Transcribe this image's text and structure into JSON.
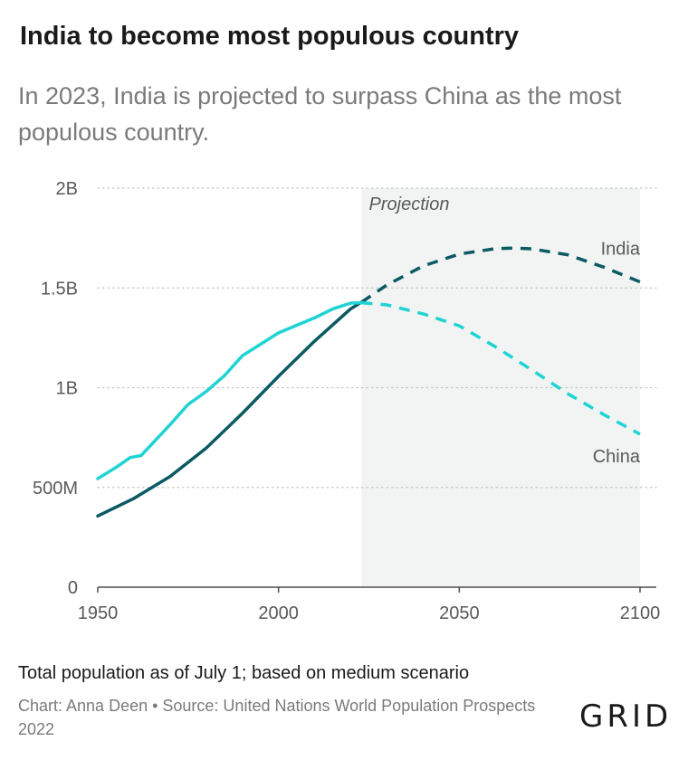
{
  "title": "India to become most populous country",
  "subtitle": "In 2023, India is projected to surpass China as the most populous country.",
  "note": "Total population as of July 1; based on medium scenario",
  "credit": "Chart: Anna Deen • Source: United Nations World Population Prospects 2022",
  "logo": "GRID",
  "chart_data": {
    "type": "line",
    "title": "India to become most populous country",
    "xlabel": "",
    "ylabel": "",
    "xlim": [
      1950,
      2100
    ],
    "ylim": [
      0,
      2000000000
    ],
    "x_ticks": [
      1950,
      2000,
      2050,
      2100
    ],
    "x_tick_labels": [
      "1950",
      "2000",
      "2050",
      "2100"
    ],
    "y_ticks": [
      0,
      500000000,
      1000000000,
      1500000000,
      2000000000
    ],
    "y_tick_labels": [
      "0",
      "500M",
      "1B",
      "1.5B",
      "2B"
    ],
    "grid": "horizontal dotted",
    "projection": {
      "from": 2023,
      "to": 2100,
      "label": "Projection"
    },
    "colors": {
      "India": "#0b5a63",
      "China": "#20d3d3",
      "projection_band": "#f2f4f4"
    },
    "series": [
      {
        "name": "India",
        "x": [
          1950,
          1960,
          1970,
          1980,
          1990,
          2000,
          2010,
          2020,
          2023,
          2030,
          2040,
          2050,
          2060,
          2065,
          2070,
          2080,
          2090,
          2100
        ],
        "values": [
          357000000,
          445000000,
          555000000,
          697000000,
          871000000,
          1057000000,
          1234000000,
          1396000000,
          1429000000,
          1515000000,
          1610000000,
          1670000000,
          1697000000,
          1700000000,
          1696000000,
          1666000000,
          1604000000,
          1530000000
        ]
      },
      {
        "name": "China",
        "x": [
          1950,
          1955,
          1959,
          1962,
          1970,
          1975,
          1980,
          1985,
          1990,
          2000,
          2010,
          2015,
          2020,
          2023,
          2030,
          2040,
          2050,
          2060,
          2070,
          2080,
          2090,
          2100
        ],
        "values": [
          544000000,
          600000000,
          650000000,
          660000000,
          815000000,
          916000000,
          981000000,
          1060000000,
          1160000000,
          1275000000,
          1350000000,
          1395000000,
          1424000000,
          1426000000,
          1415000000,
          1370000000,
          1310000000,
          1205000000,
          1090000000,
          970000000,
          865000000,
          767000000
        ]
      }
    ]
  }
}
